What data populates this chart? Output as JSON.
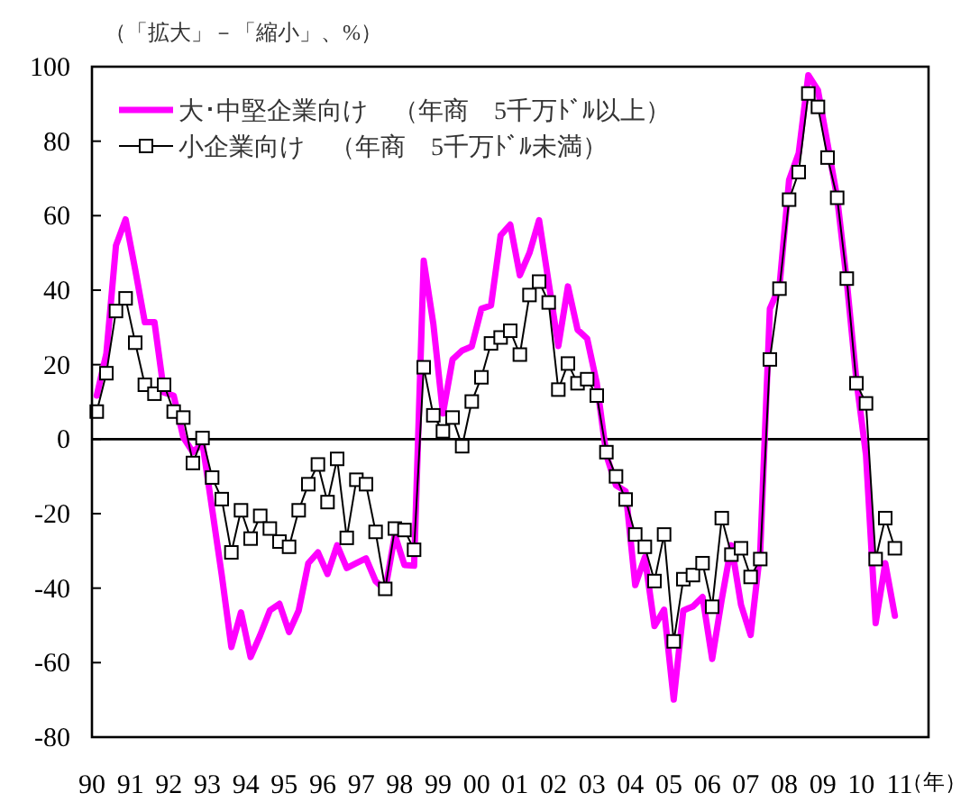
{
  "chart_data": {
    "type": "line",
    "ylabel": "（「拡大」－「縮小」、%）",
    "xlabel": "（年）",
    "xlim": [
      1990,
      2011.75
    ],
    "ylim": [
      -80,
      100
    ],
    "yticks": [
      -80,
      -60,
      -40,
      -20,
      0,
      20,
      40,
      60,
      80,
      100
    ],
    "xticks": [
      {
        "value": 1990,
        "label": "90"
      },
      {
        "value": 1991,
        "label": "91"
      },
      {
        "value": 1992,
        "label": "92"
      },
      {
        "value": 1993,
        "label": "93"
      },
      {
        "value": 1994,
        "label": "94"
      },
      {
        "value": 1995,
        "label": "95"
      },
      {
        "value": 1996,
        "label": "96"
      },
      {
        "value": 1997,
        "label": "97"
      },
      {
        "value": 1998,
        "label": "98"
      },
      {
        "value": 1999,
        "label": "99"
      },
      {
        "value": 2000,
        "label": "00"
      },
      {
        "value": 2001,
        "label": "01"
      },
      {
        "value": 2002,
        "label": "02"
      },
      {
        "value": 2003,
        "label": "03"
      },
      {
        "value": 2004,
        "label": "04"
      },
      {
        "value": 2005,
        "label": "05"
      },
      {
        "value": 2006,
        "label": "06"
      },
      {
        "value": 2007,
        "label": "07"
      },
      {
        "value": 2008,
        "label": "08"
      },
      {
        "value": 2009,
        "label": "09"
      },
      {
        "value": 2010,
        "label": "10"
      },
      {
        "value": 2011,
        "label": "11"
      }
    ],
    "x": [
      1990.125,
      1990.375,
      1990.625,
      1990.875,
      1991.125,
      1991.375,
      1991.625,
      1991.875,
      1992.125,
      1992.375,
      1992.625,
      1992.875,
      1993.125,
      1993.375,
      1993.625,
      1993.875,
      1994.125,
      1994.375,
      1994.625,
      1994.875,
      1995.125,
      1995.375,
      1995.625,
      1995.875,
      1996.125,
      1996.375,
      1996.625,
      1996.875,
      1997.125,
      1997.375,
      1997.625,
      1997.875,
      1998.125,
      1998.375,
      1998.625,
      1998.875,
      1999.125,
      1999.375,
      1999.625,
      1999.875,
      2000.125,
      2000.375,
      2000.625,
      2000.875,
      2001.125,
      2001.375,
      2001.625,
      2001.875,
      2002.125,
      2002.375,
      2002.625,
      2002.875,
      2003.125,
      2003.375,
      2003.625,
      2003.875,
      2004.125,
      2004.375,
      2004.625,
      2004.875,
      2005.125,
      2005.375,
      2005.625,
      2005.875,
      2006.125,
      2006.375,
      2006.625,
      2006.875,
      2007.125,
      2007.375,
      2007.625,
      2007.875,
      2008.125,
      2008.375,
      2008.625,
      2008.875,
      2009.125,
      2009.375,
      2009.625,
      2009.875,
      2010.125,
      2010.375,
      2010.625,
      2010.875
    ],
    "legend": "top left",
    "grid": false,
    "line_style": "solid",
    "ref_lines": [
      {
        "axis": "y",
        "value": 0,
        "color": "#000000"
      }
    ],
    "series": [
      {
        "name": "大･中堅企業向け　（年商　5千万ﾄﾞﾙ以上）",
        "color": "#ff00ff",
        "marker": "none",
        "values": [
          11.7,
          23,
          52,
          59,
          45.5,
          31.4,
          31.4,
          12.5,
          11.7,
          0.5,
          -3.5,
          -1.1,
          -18.8,
          -36.5,
          -55.8,
          -46.5,
          -58.5,
          -52.6,
          -46,
          -44.2,
          -51.8,
          -46,
          -33.3,
          -30.4,
          -36.2,
          -28.5,
          -34.6,
          -33.3,
          -32,
          -38.1,
          -40.5,
          -25.7,
          -33.8,
          -34,
          47.9,
          31,
          6.9,
          21.4,
          23.8,
          24.9,
          35,
          35.9,
          54.7,
          57.6,
          44,
          50,
          58.8,
          42,
          25,
          41,
          29.4,
          27,
          15,
          -4.3,
          -12.4,
          -14,
          -39.2,
          -31.7,
          -50.2,
          -45.8,
          -69.9,
          -46,
          -44.9,
          -42.4,
          -59,
          -43,
          -28.5,
          -44.5,
          -52.6,
          -30,
          35,
          41,
          69.6,
          76.8,
          97.7,
          93.7,
          79.3,
          64.8,
          42.3,
          15.8,
          -4.3,
          -49.4,
          -33.3,
          -47.4
        ]
      },
      {
        "name": "小企業向け　（年商　5千万ﾄﾞﾙ未満）",
        "color": "#000000",
        "marker": "square",
        "values": [
          7.4,
          17.7,
          34.4,
          37.8,
          25.9,
          14.6,
          12.2,
          14.6,
          7.4,
          5.8,
          -6.4,
          0.3,
          -10.3,
          -16.1,
          -30.4,
          -19.1,
          -26.7,
          -20.6,
          -24,
          -27.5,
          -28.9,
          -19.1,
          -12.1,
          -6.8,
          -16.9,
          -5.3,
          -26.5,
          -10.9,
          -12.1,
          -24.9,
          -40.2,
          -24,
          -24.4,
          -29.7,
          19.3,
          6.4,
          2.1,
          5.8,
          -1.9,
          10.1,
          16.6,
          25.7,
          27.3,
          29.1,
          22.7,
          38.7,
          42.3,
          36.7,
          13.3,
          20.3,
          15,
          16.1,
          11.7,
          -3.5,
          -10,
          -16.2,
          -25.6,
          -28.9,
          -38.1,
          -25.6,
          -54.3,
          -37.6,
          -36.5,
          -33.3,
          -45,
          -21.2,
          -31,
          -29.3,
          -37,
          -32.2,
          21.4,
          40.4,
          64.3,
          71.7,
          92.8,
          89.2,
          75.6,
          64.8,
          43.1,
          15,
          9.6,
          -32.2,
          -21.2,
          -29.3
        ]
      }
    ]
  }
}
